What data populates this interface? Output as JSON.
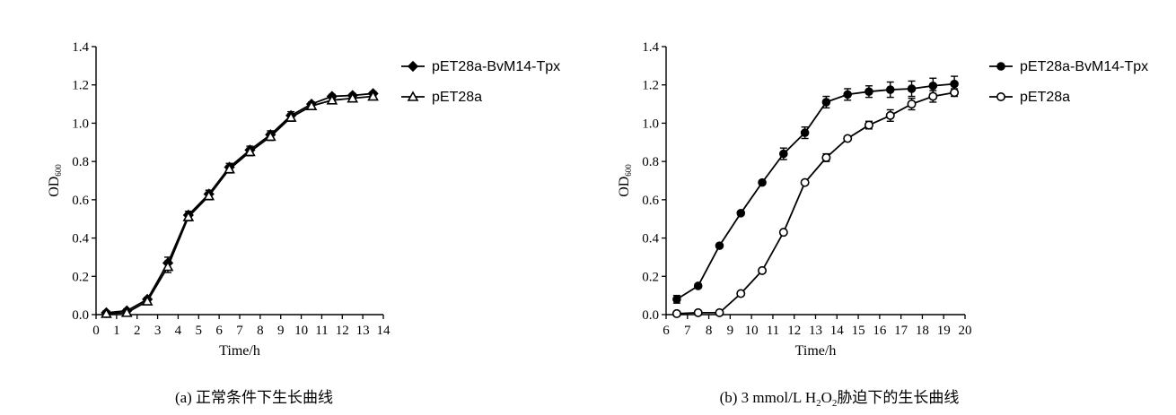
{
  "chart_data": [
    {
      "type": "line",
      "xlabel": "Time/h",
      "ylabel": "OD",
      "ylabel_sub": "600",
      "xlim": [
        0,
        14
      ],
      "ylim": [
        0,
        1.4
      ],
      "xticks": [
        "0",
        "1",
        "2",
        "3",
        "4",
        "5",
        "6",
        "7",
        "8",
        "9",
        "10",
        "11",
        "12",
        "13",
        "14"
      ],
      "yticks": [
        "0.0",
        "0.2",
        "0.4",
        "0.6",
        "0.8",
        "1.0",
        "1.2",
        "1.4"
      ],
      "legend_position": "top-right",
      "caption": "(a) 正常条件下生长曲线",
      "series": [
        {
          "name": "pET28a-BvM14-Tpx",
          "marker": "filled-diamond",
          "x": [
            0.5,
            1.5,
            2.5,
            3.5,
            4.5,
            5.5,
            6.5,
            7.5,
            8.5,
            9.5,
            10.5,
            11.5,
            12.5,
            13.5
          ],
          "y": [
            0.01,
            0.02,
            0.08,
            0.27,
            0.52,
            0.63,
            0.77,
            0.86,
            0.94,
            1.04,
            1.1,
            1.14,
            1.145,
            1.155
          ],
          "err": [
            0.01,
            0.01,
            0.01,
            0.03,
            0.02,
            0.02,
            0.02,
            0.02,
            0.02,
            0.02,
            0.01,
            0.01,
            0.01,
            0.01
          ]
        },
        {
          "name": "pET28a",
          "marker": "open-triangle",
          "x": [
            0.5,
            1.5,
            2.5,
            3.5,
            4.5,
            5.5,
            6.5,
            7.5,
            8.5,
            9.5,
            10.5,
            11.5,
            12.5,
            13.5
          ],
          "y": [
            0.005,
            0.01,
            0.07,
            0.25,
            0.51,
            0.62,
            0.76,
            0.85,
            0.93,
            1.03,
            1.09,
            1.12,
            1.13,
            1.14
          ],
          "err": [
            0.01,
            0.01,
            0.01,
            0.03,
            0.02,
            0.02,
            0.02,
            0.02,
            0.02,
            0.02,
            0.01,
            0.01,
            0.01,
            0.01
          ]
        }
      ]
    },
    {
      "type": "line",
      "xlabel": "Time/h",
      "ylabel": "OD",
      "ylabel_sub": "600",
      "xlim": [
        6,
        20
      ],
      "ylim": [
        0,
        1.4
      ],
      "xticks": [
        "6",
        "7",
        "8",
        "9",
        "10",
        "11",
        "12",
        "13",
        "14",
        "15",
        "16",
        "17",
        "18",
        "19",
        "20"
      ],
      "yticks": [
        "0.0",
        "0.2",
        "0.4",
        "0.6",
        "0.8",
        "1.0",
        "1.2",
        "1.4"
      ],
      "legend_position": "top-right",
      "caption_prefix": "(b)  3 mmol/L H",
      "caption_sub1": "2",
      "caption_mid": "O",
      "caption_sub2": "2",
      "caption_suffix": "胁迫下的生长曲线",
      "series": [
        {
          "name": "pET28a-BvM14-Tpx",
          "marker": "filled-circle",
          "x": [
            6.5,
            7.5,
            8.5,
            9.5,
            10.5,
            11.5,
            12.5,
            13.5,
            14.5,
            15.5,
            16.5,
            17.5,
            18.5,
            19.5
          ],
          "y": [
            0.08,
            0.15,
            0.36,
            0.53,
            0.69,
            0.84,
            0.95,
            1.11,
            1.15,
            1.165,
            1.175,
            1.18,
            1.195,
            1.205
          ],
          "err": [
            0.02,
            0.01,
            0.01,
            0.01,
            0.01,
            0.03,
            0.03,
            0.03,
            0.03,
            0.03,
            0.04,
            0.04,
            0.04,
            0.04
          ]
        },
        {
          "name": "pET28a",
          "marker": "open-circle",
          "x": [
            6.5,
            7.5,
            8.5,
            9.5,
            10.5,
            11.5,
            12.5,
            13.5,
            14.5,
            15.5,
            16.5,
            17.5,
            18.5,
            19.5
          ],
          "y": [
            0.005,
            0.01,
            0.01,
            0.11,
            0.23,
            0.43,
            0.69,
            0.82,
            0.92,
            0.99,
            1.04,
            1.1,
            1.14,
            1.16
          ],
          "err": [
            0.005,
            0.005,
            0.005,
            0.01,
            0.01,
            0.01,
            0.01,
            0.02,
            0.01,
            0.02,
            0.03,
            0.03,
            0.03,
            0.02
          ]
        }
      ]
    }
  ]
}
